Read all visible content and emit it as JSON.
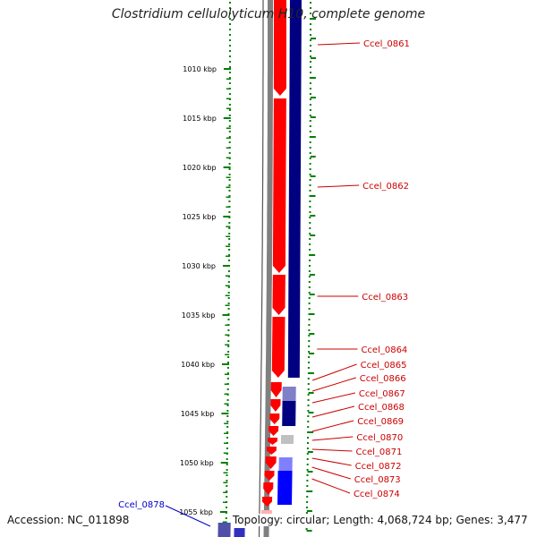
{
  "title": "Clostridium cellulolyticum H10, complete genome",
  "footer": {
    "accession": "Accession: NC_011898",
    "summary": "Topology: circular; Length: 4,068,724 bp; Genes: 3,477"
  },
  "colors": {
    "forward_strand": "#ff0000",
    "reverse_strand": "#000080",
    "blue_gene": "#0000ff",
    "tick_green": "#008000",
    "forward_label": "#cc0000",
    "reverse_label": "#0000cc",
    "backbone": "#808080"
  },
  "scale": {
    "unit": "kbp",
    "labels": [
      "1010 kbp",
      "1015 kbp",
      "1020 kbp",
      "1025 kbp",
      "1030 kbp",
      "1035 kbp",
      "1040 kbp",
      "1045 kbp",
      "1050 kbp",
      "1055 kbp"
    ]
  },
  "gene_labels": {
    "forward": [
      "Ccel_0861",
      "Ccel_0862",
      "Ccel_0863",
      "Ccel_0864",
      "Ccel_0865",
      "Ccel_0866",
      "Ccel_0867",
      "Ccel_0868",
      "Ccel_0869",
      "Ccel_0870",
      "Ccel_0871",
      "Ccel_0872",
      "Ccel_0873",
      "Ccel_0874"
    ],
    "reverse": [
      "Ccel_0878"
    ]
  }
}
